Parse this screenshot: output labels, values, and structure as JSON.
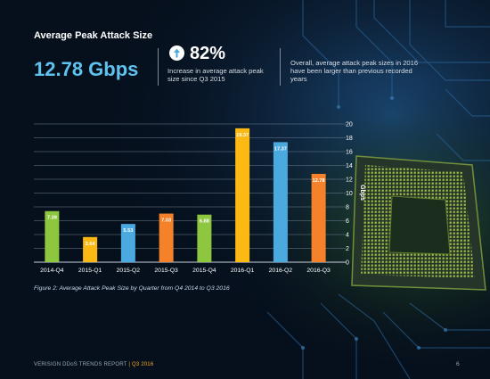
{
  "header": {
    "title": "Average Peak Attack Size",
    "headline_value": "12.78 Gbps",
    "stat_percent": "82%",
    "stat_description": "Increase in average attack peak size since Q3 2015",
    "note": "Overall, average attack peak sizes in 2016 have been larger than previous recorded years"
  },
  "icons": {
    "stat_icon": "arrow-up-icon"
  },
  "colors": {
    "green": "#8dc63f",
    "yellow": "#fdb913",
    "blue": "#4aa9de",
    "orange": "#f5822a",
    "headline": "#5fc3f0"
  },
  "chart_data": {
    "type": "bar",
    "categories": [
      "2014-Q4",
      "2015-Q1",
      "2015-Q2",
      "2015-Q3",
      "2015-Q4",
      "2016-Q1",
      "2016-Q2",
      "2016-Q3"
    ],
    "values": [
      7.39,
      3.64,
      5.53,
      7.03,
      6.88,
      19.37,
      17.37,
      12.78
    ],
    "data_labels": [
      "7.39",
      "3.64",
      "5.53",
      "7.03",
      "6.88",
      "19.37",
      "17.37",
      "12.78"
    ],
    "bar_colors": [
      "#8dc63f",
      "#fdb913",
      "#4aa9de",
      "#f5822a",
      "#8dc63f",
      "#fdb913",
      "#4aa9de",
      "#f5822a"
    ],
    "ylabel": "Gbps",
    "ylim": [
      0,
      20
    ],
    "yticks": [
      0,
      2,
      4,
      6,
      8,
      10,
      12,
      14,
      16,
      18,
      20
    ],
    "y_axis_position": "right",
    "grid": true
  },
  "caption": "Figure 2: Average Attack Peak Size by Quarter from Q4 2014 to Q3 2016",
  "footer": {
    "left": "VERISIGN DDoS TRENDS REPORT",
    "separator": "|",
    "right": "Q3 2016",
    "page": "6"
  }
}
